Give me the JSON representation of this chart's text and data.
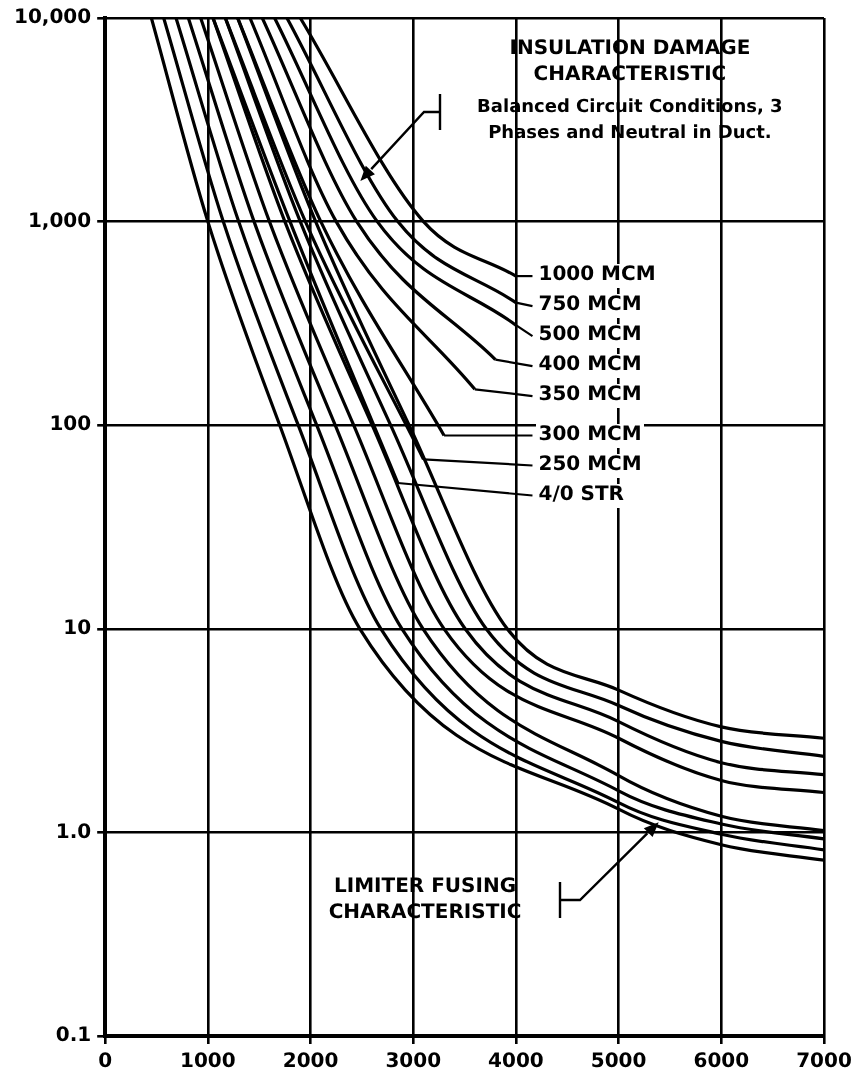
{
  "chart_data": {
    "type": "line",
    "log": "y",
    "grid": true,
    "legend": "right",
    "marker": "none",
    "line_style": "solid",
    "xlim": [
      0,
      7000
    ],
    "xticks": [
      0,
      1000,
      2000,
      3000,
      4000,
      5000,
      6000,
      7000
    ],
    "ylim": [
      0.1,
      10000
    ],
    "yticks": [
      0.1,
      {
        "value": 1,
        "label": "1.0"
      },
      10,
      100,
      {
        "value": 1000,
        "label": "1,000"
      },
      {
        "value": 10000,
        "label": "10,000"
      }
    ],
    "series": [
      {
        "color": "#000000",
        "x": [
          450,
          1000,
          1700,
          2480,
          5000,
          6000,
          7000
        ],
        "values": [
          10000,
          1000,
          100,
          10,
          1.3,
          0.87,
          0.73
        ]
      },
      {
        "color": "#000000",
        "x": [
          570,
          1150,
          1880,
          2685,
          5000,
          6000,
          7000
        ],
        "values": [
          10000,
          1000,
          100,
          10,
          1.4,
          0.98,
          0.82
        ]
      },
      {
        "color": "#000000",
        "x": [
          690,
          1300,
          2060,
          2890,
          5000,
          6000,
          7000
        ],
        "values": [
          10000,
          1000,
          100,
          10,
          1.6,
          1.1,
          0.93
        ]
      },
      {
        "color": "#000000",
        "x": [
          810,
          1450,
          2240,
          3095,
          5000,
          6000,
          7000
        ],
        "values": [
          10000,
          1000,
          100,
          10,
          1.9,
          1.2,
          1.02
        ]
      },
      {
        "color": "#000000",
        "x": [
          930,
          1600,
          2420,
          3300,
          5000,
          6000,
          7000
        ],
        "values": [
          10000,
          1000,
          100,
          10,
          2.9,
          1.8,
          1.57
        ]
      },
      {
        "color": "#000000",
        "x": [
          1050,
          1750,
          2600,
          3505,
          5000,
          6000,
          7000
        ],
        "values": [
          10000,
          1000,
          100,
          10,
          3.5,
          2.2,
          1.92
        ]
      },
      {
        "color": "#000000",
        "x": [
          1170,
          1900,
          2780,
          3710,
          5000,
          6000,
          7000
        ],
        "values": [
          10000,
          1000,
          100,
          10,
          4.2,
          2.8,
          2.36
        ]
      },
      {
        "color": "#000000",
        "x": [
          1290,
          2050,
          2960,
          3915,
          5000,
          6000,
          7000
        ],
        "values": [
          10000,
          1000,
          100,
          10,
          5.0,
          3.3,
          2.9
        ]
      },
      {
        "name": "4/0 STR",
        "color": "#000000",
        "x": [
          1050,
          1800,
          2850
        ],
        "values": [
          10000,
          1000,
          52
        ]
      },
      {
        "name": "250 MCM",
        "color": "#000000",
        "x": [
          1170,
          1950,
          3100
        ],
        "values": [
          10000,
          1000,
          68
        ]
      },
      {
        "name": "300 MCM",
        "color": "#000000",
        "x": [
          1290,
          2100,
          3300
        ],
        "values": [
          10000,
          1000,
          89
        ]
      },
      {
        "name": "350 MCM",
        "color": "#000000",
        "x": [
          1410,
          2250,
          3600
        ],
        "values": [
          10000,
          1000,
          150
        ]
      },
      {
        "name": "400 MCM",
        "color": "#000000",
        "x": [
          1530,
          2450,
          3800
        ],
        "values": [
          10000,
          1000,
          210
        ]
      },
      {
        "name": "500 MCM",
        "color": "#000000",
        "x": [
          1650,
          2650,
          4000
        ],
        "values": [
          10000,
          1000,
          310
        ]
      },
      {
        "name": "750 MCM",
        "color": "#000000",
        "x": [
          1770,
          2850,
          4000
        ],
        "values": [
          10000,
          1000,
          400
        ]
      },
      {
        "name": "1000 MCM",
        "color": "#000000",
        "x": [
          1900,
          3100,
          4000
        ],
        "values": [
          10000,
          1000,
          540
        ]
      }
    ],
    "annotations": [
      "INSULATION DAMAGE CHARACTERISTIC",
      "Balanced Circuit Conditions, 3 Phases and Neutral in Duct.",
      "LIMITER FUSING CHARACTERISTIC"
    ]
  }
}
